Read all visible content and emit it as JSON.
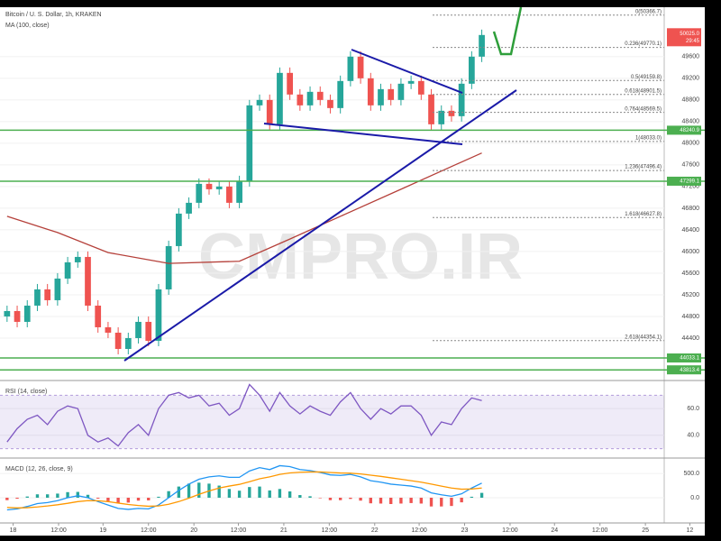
{
  "chart_data": [
    {
      "type": "candlestick",
      "title": "Bitcoin / U. S. Dollar, 1h, KRAKEN",
      "open": [
        44800,
        44900,
        44700,
        45000,
        45300,
        45100,
        45500,
        45800,
        45900,
        45000,
        44600,
        44500,
        44200,
        44400,
        44700,
        44350,
        45300,
        46100,
        46700,
        46900,
        47250,
        47150,
        47200,
        46900,
        47300,
        48700,
        48800,
        48350,
        49300,
        48900,
        48700,
        48950,
        48800,
        48650,
        49150,
        49600,
        49200,
        48700,
        49000,
        48800,
        49100,
        49150,
        48900,
        48350,
        48600,
        48500,
        49100,
        49600
      ],
      "high": [
        45000,
        45000,
        45100,
        45400,
        45400,
        45600,
        45900,
        46000,
        46000,
        45100,
        44700,
        44600,
        44500,
        44800,
        44800,
        45400,
        46200,
        46800,
        47000,
        47350,
        47350,
        47300,
        47300,
        47400,
        48800,
        48900,
        48900,
        49400,
        49400,
        49000,
        49050,
        49050,
        48900,
        49250,
        49700,
        49700,
        49300,
        49100,
        49100,
        49200,
        49250,
        49250,
        49000,
        48700,
        48700,
        49200,
        49700,
        50100
      ],
      "low": [
        44700,
        44600,
        44600,
        44900,
        45000,
        45000,
        45400,
        45700,
        44900,
        44500,
        44400,
        44100,
        44100,
        44300,
        44250,
        44250,
        45200,
        46000,
        46600,
        46800,
        47050,
        47050,
        46800,
        46800,
        47200,
        48600,
        48250,
        48250,
        48800,
        48600,
        48600,
        48700,
        48550,
        48550,
        49050,
        49100,
        48600,
        48600,
        48700,
        48700,
        49000,
        48800,
        48250,
        48250,
        48400,
        48400,
        49000,
        49500
      ],
      "close": [
        44900,
        44700,
        45000,
        45300,
        45100,
        45500,
        45800,
        45900,
        45000,
        44600,
        44500,
        44200,
        44400,
        44700,
        44350,
        45300,
        46100,
        46700,
        46900,
        47250,
        47150,
        47200,
        46900,
        47300,
        48700,
        48800,
        48350,
        49300,
        48900,
        48700,
        48950,
        48800,
        48650,
        49150,
        49600,
        49200,
        48700,
        49000,
        48800,
        49100,
        49150,
        48900,
        48350,
        48600,
        48500,
        49100,
        49600,
        50000
      ],
      "up_color": "#26a69a",
      "down_color": "#ef5350",
      "series": [
        {
          "name": "MA (100, close)",
          "color": "#b5403a",
          "x": [
            0,
            5,
            10,
            16,
            23,
            28,
            33,
            39,
            44,
            47
          ],
          "values": [
            46650,
            46350,
            45980,
            45780,
            45820,
            46230,
            46650,
            47150,
            47570,
            47820
          ]
        }
      ],
      "xlim": [
        -0.7,
        68.9
      ],
      "ylim": [
        43650,
        50480
      ],
      "yticks": [
        49600,
        49200,
        48800,
        48400,
        48000,
        47600,
        47200,
        46800,
        46400,
        46000,
        45600,
        45200,
        44800,
        44400
      ],
      "grid": true,
      "fib_levels": [
        {
          "value": 50366.7,
          "label": "0(50366.7)"
        },
        {
          "value": 49770.1,
          "label": "0.236(49770.1)"
        },
        {
          "value": 49159.8,
          "label": "0.5(49159.8)"
        },
        {
          "value": 48901.5,
          "label": "0.618(48901.5)"
        },
        {
          "value": 48569.5,
          "label": "0.764(48569.5)"
        },
        {
          "value": 48033.0,
          "label": "1(48033.0)"
        },
        {
          "value": 47496.4,
          "label": "1.236(47496.4)"
        },
        {
          "value": 46627.8,
          "label": "1.618(46627.8)"
        },
        {
          "value": 44354.1,
          "label": "2.618(44354.1)"
        }
      ],
      "levels": [
        48240.9,
        47299.1,
        44033.1,
        43813.4
      ],
      "level_color": "#4caf50",
      "last_price": {
        "value": 50025.0,
        "label": "50025.0"
      },
      "countdown": "29:45",
      "watermark": "CMPRO.IR"
    },
    {
      "type": "line",
      "title": "RSI (14, close)",
      "series": [
        {
          "color": "#7e57c2",
          "values": [
            35,
            45,
            52,
            55,
            48,
            58,
            62,
            60,
            40,
            35,
            38,
            32,
            42,
            48,
            40,
            60,
            70,
            72,
            68,
            70,
            62,
            64,
            55,
            60,
            78,
            70,
            58,
            72,
            62,
            56,
            62,
            58,
            55,
            65,
            72,
            60,
            52,
            60,
            56,
            62,
            62,
            55,
            40,
            50,
            48,
            60,
            68,
            66
          ]
        }
      ],
      "band": [
        30,
        70
      ],
      "xlim": [
        -0.7,
        68.9
      ],
      "ylim": [
        25,
        79
      ],
      "yticks": [
        {
          "value": 60,
          "label": "60.0"
        },
        {
          "value": 40,
          "label": "40.0"
        }
      ]
    },
    {
      "type": "macd",
      "title": "MACD (12, 26, close, 9)",
      "series": [
        {
          "color": "#2196f3",
          "values": [
            -250,
            -230,
            -180,
            -120,
            -100,
            -60,
            0,
            40,
            0,
            -80,
            -150,
            -220,
            -240,
            -220,
            -230,
            -150,
            0,
            150,
            280,
            380,
            430,
            450,
            420,
            420,
            550,
            620,
            580,
            660,
            640,
            580,
            560,
            520,
            470,
            460,
            480,
            430,
            350,
            320,
            280,
            260,
            240,
            200,
            100,
            60,
            30,
            80,
            200,
            300
          ]
        },
        {
          "color": "#ff9800",
          "values": [
            -200,
            -210,
            -205,
            -190,
            -170,
            -145,
            -115,
            -80,
            -60,
            -62,
            -80,
            -110,
            -140,
            -160,
            -175,
            -170,
            -135,
            -80,
            -10,
            70,
            140,
            200,
            240,
            275,
            330,
            390,
            430,
            480,
            510,
            525,
            530,
            530,
            520,
            510,
            505,
            490,
            465,
            440,
            410,
            380,
            350,
            320,
            280,
            240,
            200,
            175,
            180,
            200
          ]
        }
      ],
      "histogram": {
        "up_color": "#26a69a",
        "down_color": "#ef5350",
        "values": [
          -50,
          -20,
          25,
          70,
          70,
          85,
          115,
          120,
          60,
          -18,
          -70,
          -110,
          -100,
          -60,
          -55,
          20,
          135,
          230,
          290,
          310,
          290,
          250,
          180,
          145,
          220,
          230,
          150,
          180,
          130,
          55,
          30,
          -10,
          -50,
          -50,
          -25,
          -60,
          -115,
          -120,
          -130,
          -120,
          -110,
          -120,
          -180,
          -180,
          -170,
          -95,
          20,
          100
        ]
      },
      "xlim": [
        -0.7,
        68.9
      ],
      "ylim": [
        -520,
        780
      ],
      "yticks": [
        {
          "value": 500,
          "label": "500.0"
        },
        {
          "value": 0,
          "label": "0.0"
        }
      ],
      "xticks": [
        {
          "value": 0.6,
          "label": "18"
        },
        {
          "value": 5.1,
          "label": "12:00"
        },
        {
          "value": 9.5,
          "label": "19"
        },
        {
          "value": 14.0,
          "label": "12:00"
        },
        {
          "value": 18.5,
          "label": "20"
        },
        {
          "value": 22.9,
          "label": "12:00"
        },
        {
          "value": 27.4,
          "label": "21"
        },
        {
          "value": 31.9,
          "label": "12:00"
        },
        {
          "value": 36.4,
          "label": "22"
        },
        {
          "value": 40.8,
          "label": "12:00"
        },
        {
          "value": 45.3,
          "label": "23"
        },
        {
          "value": 49.8,
          "label": "12:00"
        },
        {
          "value": 54.2,
          "label": "24"
        },
        {
          "value": 58.7,
          "label": "12:00"
        },
        {
          "value": 63.2,
          "label": "25"
        },
        {
          "value": 67.6,
          "label": "12"
        }
      ]
    }
  ]
}
